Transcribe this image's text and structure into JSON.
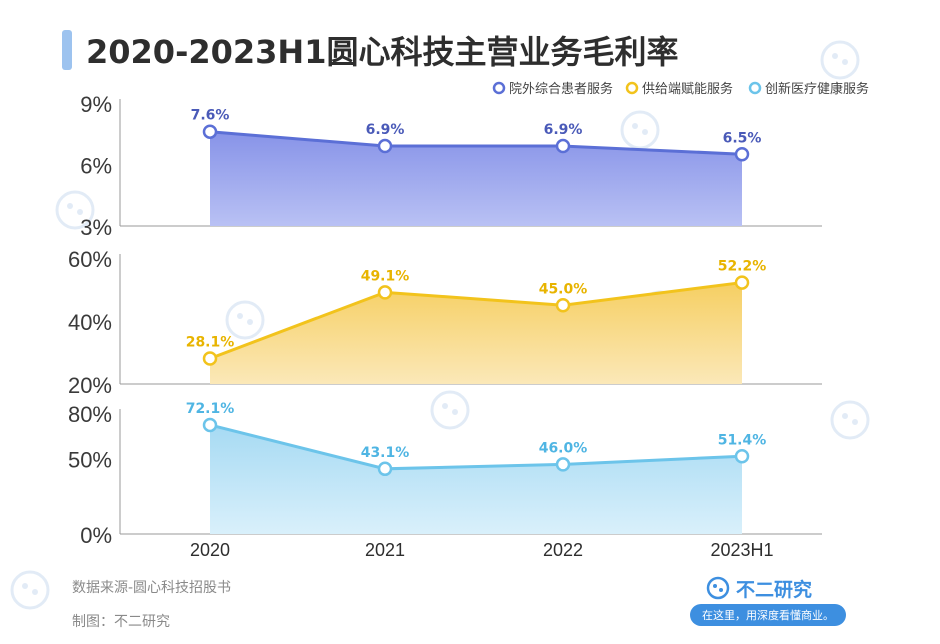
{
  "title": "2020-2023H1圆心科技主营业务毛利率",
  "legend": [
    {
      "name": "院外综合患者服务",
      "color": "#5b6fd6"
    },
    {
      "name": "供给端赋能服务",
      "color": "#f2c31c"
    },
    {
      "name": "创新医疗健康服务",
      "color": "#6cc4ea"
    }
  ],
  "footer": {
    "source": "数据来源-圆心科技招股书",
    "maker": "制图：不二研究"
  },
  "brand": {
    "name": "不二研究",
    "slogan": "在这里，用深度看懂商业。"
  },
  "chart_data": [
    {
      "type": "area",
      "title": "",
      "categories": [
        "2020",
        "2021",
        "2022",
        "2023H1"
      ],
      "series": [
        {
          "name": "院外综合患者服务",
          "values": [
            7.6,
            6.9,
            6.9,
            6.5
          ]
        }
      ],
      "data_labels": [
        "7.6%",
        "6.9%",
        "6.9%",
        "6.5%"
      ],
      "yticks": [
        "9%",
        "6%",
        "3%"
      ],
      "ytick_values": [
        9,
        6,
        3
      ],
      "ylim": [
        3,
        9
      ],
      "color": "#5b6fd6",
      "grid": false
    },
    {
      "type": "area",
      "title": "",
      "categories": [
        "2020",
        "2021",
        "2022",
        "2023H1"
      ],
      "series": [
        {
          "name": "供给端赋能服务",
          "values": [
            28.1,
            49.1,
            45.0,
            52.2
          ]
        }
      ],
      "data_labels": [
        "28.1%",
        "49.1%",
        "45.0%",
        "52.2%"
      ],
      "yticks": [
        "60%",
        "40%",
        "20%"
      ],
      "ytick_values": [
        60,
        40,
        20
      ],
      "ylim": [
        20,
        60
      ],
      "color": "#f2c31c",
      "grid": false
    },
    {
      "type": "area",
      "title": "",
      "categories": [
        "2020",
        "2021",
        "2022",
        "2023H1"
      ],
      "series": [
        {
          "name": "创新医疗健康服务",
          "values": [
            72.1,
            43.1,
            46.0,
            51.4
          ]
        }
      ],
      "data_labels": [
        "72.1%",
        "43.1%",
        "46.0%",
        "51.4%"
      ],
      "yticks": [
        "80%",
        "50%",
        "0%"
      ],
      "ytick_values": [
        80,
        50,
        0
      ],
      "ylim": [
        0,
        80
      ],
      "color": "#6cc4ea",
      "grid": false
    }
  ],
  "xticks": [
    "2020",
    "2021",
    "2022",
    "2023H1"
  ],
  "colors": {
    "title_bar": "#9dc3ef",
    "axis": "#9a9a9a",
    "fill_blue_top": "#8793e8",
    "fill_blue_bottom": "#b9c1f4",
    "fill_yellow_top": "#f6cf62",
    "fill_yellow_bottom": "#fbe8b8",
    "fill_cyan_top": "#a6daf3",
    "fill_cyan_bottom": "#d9f0fb",
    "label_blue": "#4a5ab8",
    "label_yellow": "#e8b400",
    "label_cyan": "#4fb5e3",
    "brand_blue": "#3d8fe0"
  }
}
